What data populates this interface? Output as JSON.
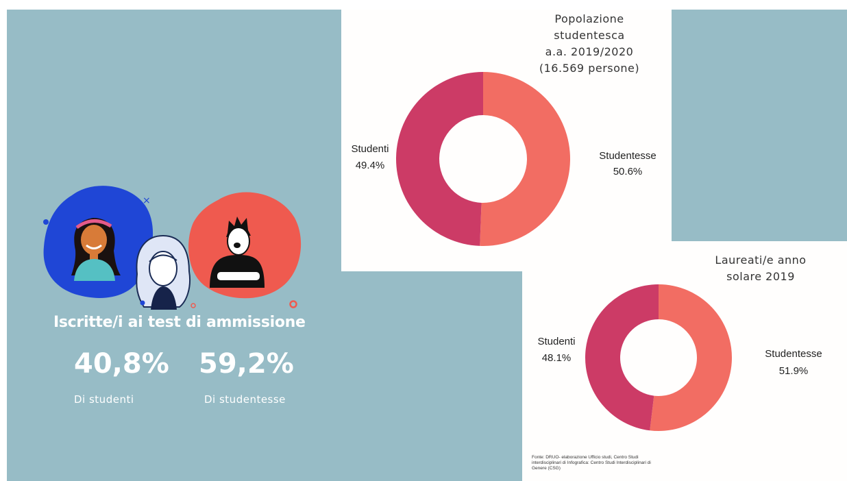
{
  "headline": "Iscritte/i ai test di ammissione",
  "stats": [
    {
      "value": "40,8%",
      "label": "Di studenti"
    },
    {
      "value": "59,2%",
      "label": "Di studentesse"
    }
  ],
  "source_note": "Fonte: DRUO- elaborazione Ufficio studi, Centro Studi interdisciplinari di Infografica: Centro Studi Interdisciplinari di Genere (CSG)",
  "colors": {
    "background": "#97bcc6",
    "studentesse": "#f26d63",
    "studenti": "#cc3b66",
    "card": "#fffefd"
  },
  "chart_data": [
    {
      "type": "pie",
      "title_lines": [
        "Popolazione",
        "studentesca",
        "a.a. 2019/2020",
        "(16.569 persone)"
      ],
      "categories": [
        "Studentesse",
        "Studenti"
      ],
      "values": [
        50.6,
        49.4
      ],
      "value_labels": [
        "50.6%",
        "49.4%"
      ],
      "colors": [
        "#f26d63",
        "#cc3b66"
      ]
    },
    {
      "type": "pie",
      "title_lines": [
        "Laureati/e anno",
        "solare 2019"
      ],
      "categories": [
        "Studentesse",
        "Studenti"
      ],
      "values": [
        51.9,
        48.1
      ],
      "value_labels": [
        "51.9%",
        "48.1%"
      ],
      "colors": [
        "#f26d63",
        "#cc3b66"
      ]
    }
  ]
}
